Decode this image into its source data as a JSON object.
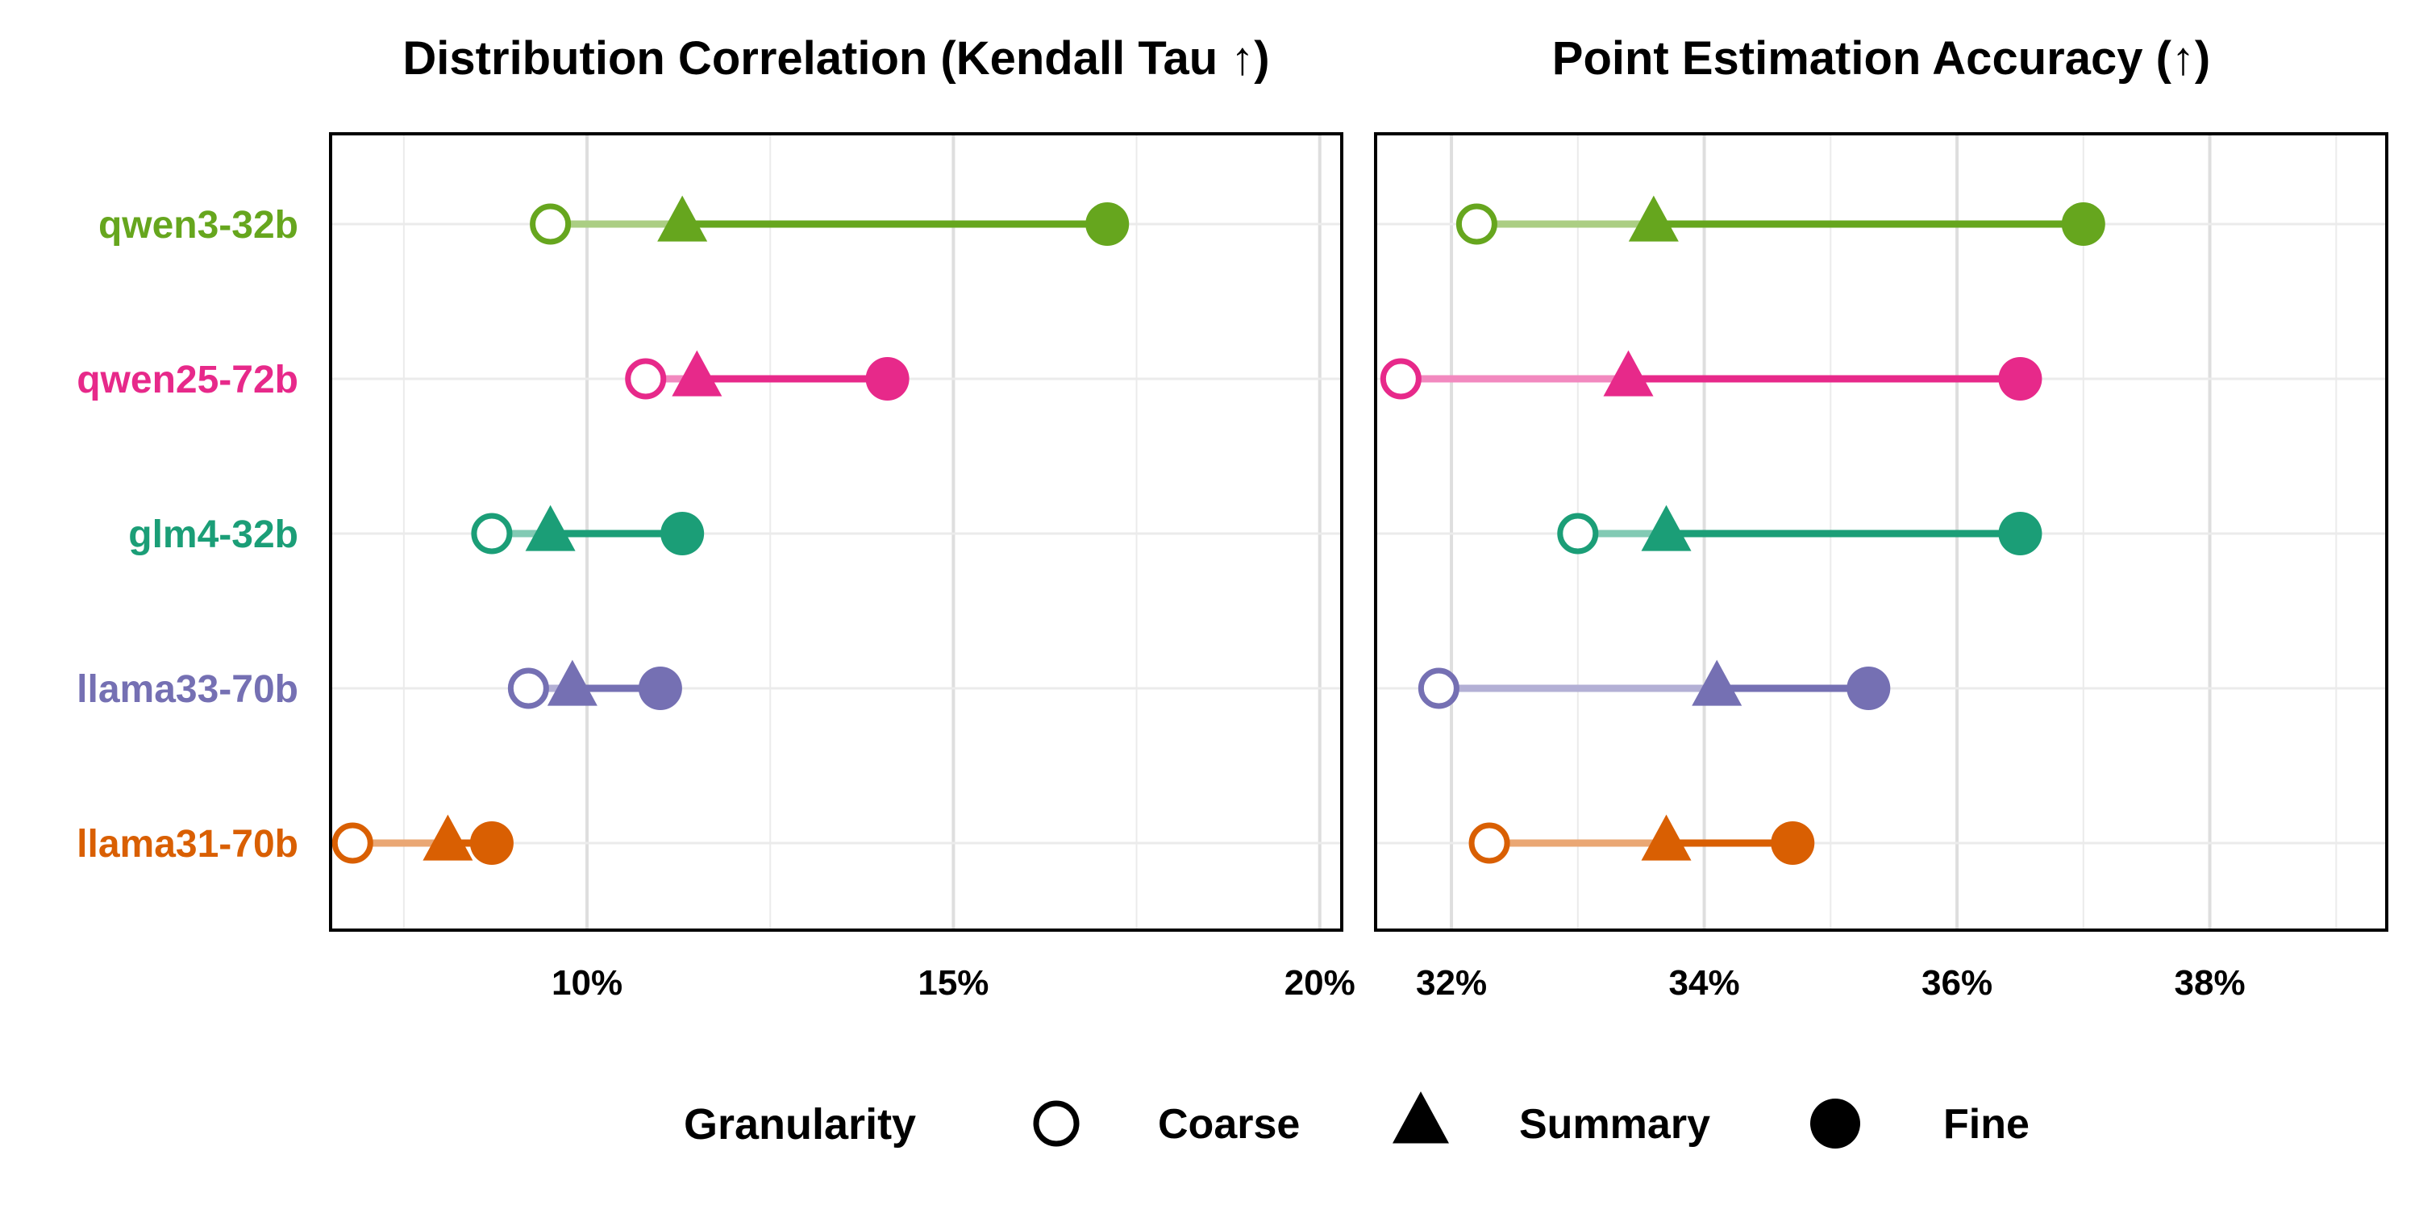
{
  "legend": {
    "title": "Granularity",
    "items": [
      {
        "label": "Coarse",
        "shape": "open-circle"
      },
      {
        "label": "Summary",
        "shape": "triangle"
      },
      {
        "label": "Fine",
        "shape": "filled-circle"
      }
    ]
  },
  "chart_data": [
    {
      "type": "dumbbell",
      "title": "Distribution Correlation (Kendall Tau ↑)",
      "xlabel": "",
      "ylabel": "",
      "xlim": [
        6.5,
        20.3
      ],
      "xticks": [
        10,
        15,
        20
      ],
      "tick_labels": [
        "10%",
        "15%",
        "20%"
      ],
      "grid": true,
      "models": [
        "qwen3-32b",
        "qwen25-72b",
        "glm4-32b",
        "llama33-70b",
        "llama31-70b"
      ],
      "colors": [
        "#66a61e",
        "#e7298a",
        "#1b9e77",
        "#7570b3",
        "#d95f02"
      ],
      "series": [
        {
          "name": "Coarse",
          "values": [
            9.5,
            10.8,
            8.7,
            9.2,
            6.8
          ]
        },
        {
          "name": "Summary",
          "values": [
            11.3,
            11.5,
            9.5,
            9.8,
            8.1
          ]
        },
        {
          "name": "Fine",
          "values": [
            17.1,
            14.1,
            11.3,
            11.0,
            8.7
          ]
        }
      ]
    },
    {
      "type": "dumbbell",
      "title": "Point Estimation Accuracy (↑)",
      "xlabel": "",
      "ylabel": "",
      "xlim": [
        31.4,
        39.4
      ],
      "xticks": [
        32,
        34,
        36,
        38
      ],
      "tick_labels": [
        "32%",
        "34%",
        "36%",
        "38%"
      ],
      "grid": true,
      "models": [
        "qwen3-32b",
        "qwen25-72b",
        "glm4-32b",
        "llama33-70b",
        "llama31-70b"
      ],
      "colors": [
        "#66a61e",
        "#e7298a",
        "#1b9e77",
        "#7570b3",
        "#d95f02"
      ],
      "series": [
        {
          "name": "Coarse",
          "values": [
            32.2,
            31.6,
            33.0,
            31.9,
            32.3
          ]
        },
        {
          "name": "Summary",
          "values": [
            33.6,
            33.4,
            33.7,
            34.1,
            33.7
          ]
        },
        {
          "name": "Fine",
          "values": [
            37.0,
            36.5,
            36.5,
            35.3,
            34.7
          ]
        }
      ]
    }
  ]
}
